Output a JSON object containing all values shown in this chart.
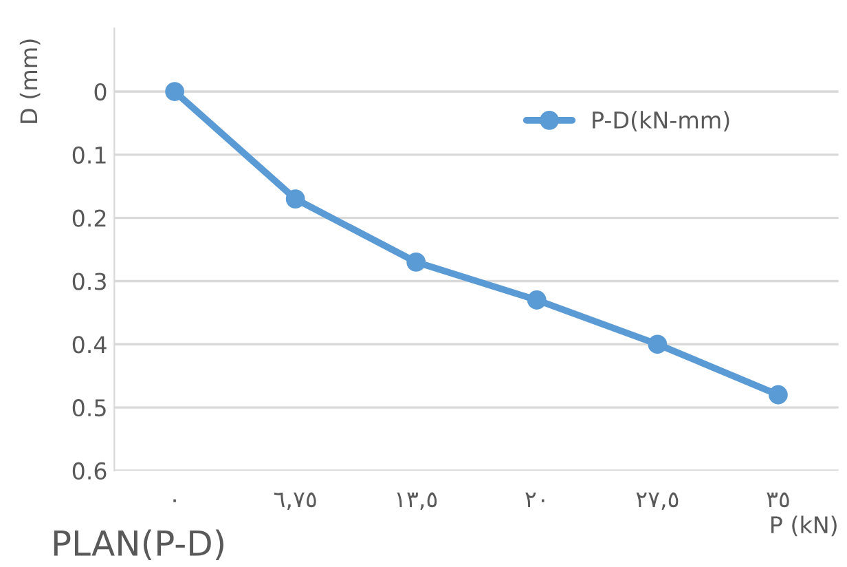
{
  "chart_data": {
    "type": "line",
    "title": "PLAN(P-D)",
    "xlabel": "P (kN)",
    "ylabel": "D (mm)",
    "categories": [
      "٠",
      "٦,٧٥",
      "١٣,٥",
      "٢٠",
      "٢٧,٥",
      "٣٥"
    ],
    "series": [
      {
        "name": "P-D(kN-mm)",
        "color": "#5b9bd5",
        "values": [
          0,
          0.17,
          0.27,
          0.33,
          0.4,
          0.48
        ]
      }
    ],
    "ylim": [
      0.6,
      -0.1
    ],
    "yticks": [
      0,
      0.1,
      0.2,
      0.3,
      0.4,
      0.5,
      0.6
    ],
    "grid": "y",
    "legend": "top right",
    "marker": "circle",
    "line_style": "solid"
  }
}
